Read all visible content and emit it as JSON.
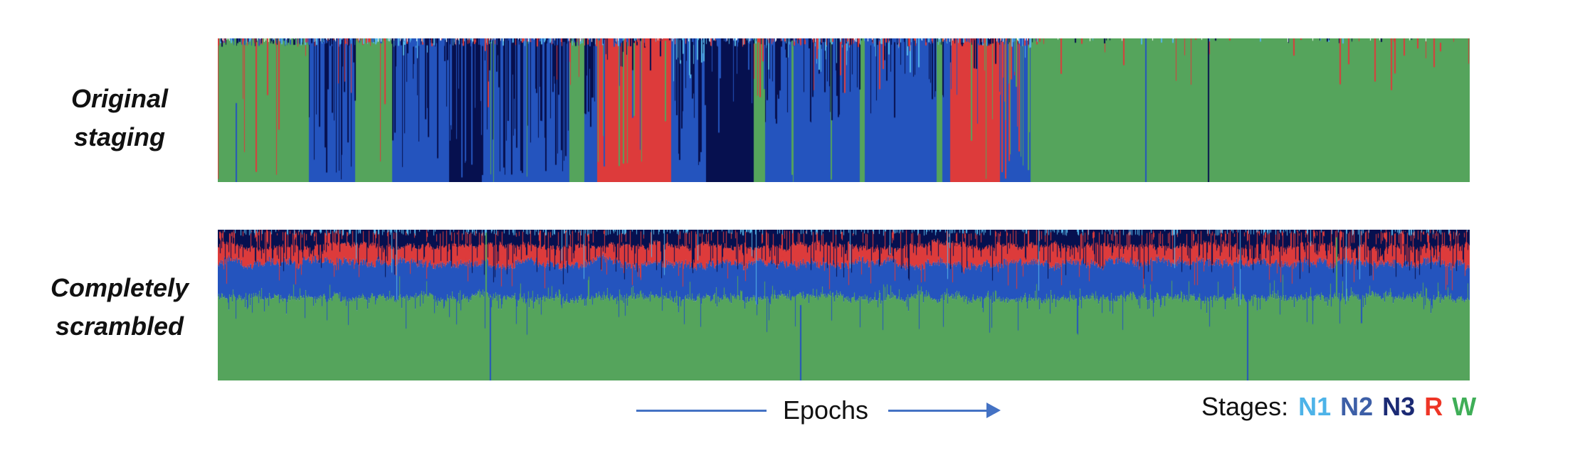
{
  "figure": {
    "rows": [
      {
        "label": "Original\nstaging"
      },
      {
        "label": "Completely\nscrambled"
      }
    ],
    "footer": {
      "epochs_label": "Epochs",
      "arrow_color": "#4472c4"
    },
    "legend": {
      "title": "Stages:",
      "items": [
        {
          "label": "N1",
          "stage": "N1",
          "color": "#4db3e8"
        },
        {
          "label": "N2",
          "stage": "N2",
          "color": "#3d5fa7"
        },
        {
          "label": "N3",
          "stage": "N3",
          "color": "#1b2a74"
        },
        {
          "label": "R",
          "stage": "R",
          "color": "#ee3526"
        },
        {
          "label": "W",
          "stage": "W",
          "color": "#3fae57"
        }
      ]
    }
  },
  "chart_data": {
    "type": "heatmap",
    "subtype": "per-epoch sleep stage bands (hypnogram-style, one colored column per epoch)",
    "bands": [
      "Original staging",
      "Completely scrambled"
    ],
    "xlabel": "Epochs",
    "stages": [
      "N1",
      "N2",
      "N3",
      "R",
      "W"
    ],
    "stage_colors": {
      "N1": "#54b6e9",
      "N2": "#2454be",
      "N3": "#06104f",
      "R": "#dd3b3b",
      "W": "#55a45c"
    },
    "seed": 7,
    "original_staging": {
      "description": "Dominant stage per fractional position along the night; streaks are minority-stage epochs mixed in",
      "segments": [
        {
          "stage": "W",
          "from": 0.0,
          "to": 0.073,
          "streaks": [
            {
              "stage": "R",
              "density": 0.06,
              "min": 0.1,
              "max": 1.0
            }
          ]
        },
        {
          "stage": "N2",
          "from": 0.073,
          "to": 0.11,
          "streaks": [
            {
              "stage": "N3",
              "density": 0.3,
              "min": 0.1,
              "max": 1.0
            },
            {
              "stage": "R",
              "density": 0.05,
              "min": 0.05,
              "max": 0.4
            }
          ]
        },
        {
          "stage": "W",
          "from": 0.11,
          "to": 0.139,
          "streaks": [
            {
              "stage": "R",
              "density": 0.08,
              "min": 0.1,
              "max": 0.9
            }
          ]
        },
        {
          "stage": "N2",
          "from": 0.139,
          "to": 0.185,
          "streaks": [
            {
              "stage": "N3",
              "density": 0.3,
              "min": 0.1,
              "max": 0.9
            },
            {
              "stage": "N1",
              "density": 0.06,
              "min": 0.03,
              "max": 0.2
            }
          ]
        },
        {
          "stage": "N3",
          "from": 0.185,
          "to": 0.211,
          "streaks": [
            {
              "stage": "N2",
              "density": 0.25,
              "min": 0.3,
              "max": 1.0
            }
          ]
        },
        {
          "stage": "N2",
          "from": 0.211,
          "to": 0.281,
          "streaks": [
            {
              "stage": "N3",
              "density": 0.4,
              "min": 0.1,
              "max": 1.0
            },
            {
              "stage": "R",
              "density": 0.05,
              "min": 0.05,
              "max": 0.5
            },
            {
              "stage": "W",
              "density": 0.015,
              "min": 0.9,
              "max": 1.0
            }
          ]
        },
        {
          "stage": "W",
          "from": 0.281,
          "to": 0.293,
          "streaks": [
            {
              "stage": "R",
              "density": 0.08,
              "min": 0.1,
              "max": 0.5
            }
          ]
        },
        {
          "stage": "N2",
          "from": 0.293,
          "to": 0.303,
          "streaks": [
            {
              "stage": "N3",
              "density": 0.25,
              "min": 0.1,
              "max": 0.8
            }
          ]
        },
        {
          "stage": "R",
          "from": 0.303,
          "to": 0.362,
          "streaks": [
            {
              "stage": "W",
              "density": 0.07,
              "min": 0.5,
              "max": 1.0
            },
            {
              "stage": "N2",
              "density": 0.04,
              "min": 0.2,
              "max": 1.0
            },
            {
              "stage": "N3",
              "density": 0.12,
              "min": 0.03,
              "max": 0.25
            }
          ]
        },
        {
          "stage": "N2",
          "from": 0.362,
          "to": 0.39,
          "streaks": [
            {
              "stage": "N3",
              "density": 0.3,
              "min": 0.1,
              "max": 0.9
            },
            {
              "stage": "N1",
              "density": 0.1,
              "min": 0.04,
              "max": 0.3
            }
          ]
        },
        {
          "stage": "N3",
          "from": 0.39,
          "to": 0.428,
          "streaks": [
            {
              "stage": "N2",
              "density": 0.1,
              "min": 0.2,
              "max": 0.7
            }
          ]
        },
        {
          "stage": "W",
          "from": 0.428,
          "to": 0.437,
          "streaks": [
            {
              "stage": "R",
              "density": 0.15,
              "min": 0.1,
              "max": 0.5
            },
            {
              "stage": "N2",
              "density": 0.1,
              "min": 0.2,
              "max": 0.6
            }
          ]
        },
        {
          "stage": "N2",
          "from": 0.437,
          "to": 0.513,
          "streaks": [
            {
              "stage": "N3",
              "density": 0.25,
              "min": 0.05,
              "max": 0.6
            },
            {
              "stage": "N1",
              "density": 0.1,
              "min": 0.03,
              "max": 0.25
            },
            {
              "stage": "R",
              "density": 0.04,
              "min": 0.05,
              "max": 0.4
            },
            {
              "stage": "W",
              "density": 0.01,
              "min": 0.9,
              "max": 1.0
            }
          ]
        },
        {
          "stage": "W",
          "from": 0.513,
          "to": 0.517,
          "streaks": []
        },
        {
          "stage": "N2",
          "from": 0.517,
          "to": 0.574,
          "streaks": [
            {
              "stage": "N3",
              "density": 0.22,
              "min": 0.05,
              "max": 0.6
            },
            {
              "stage": "N1",
              "density": 0.07,
              "min": 0.03,
              "max": 0.25
            },
            {
              "stage": "R",
              "density": 0.05,
              "min": 0.05,
              "max": 0.4
            }
          ]
        },
        {
          "stage": "W",
          "from": 0.574,
          "to": 0.579,
          "streaks": []
        },
        {
          "stage": "N2",
          "from": 0.579,
          "to": 0.585,
          "streaks": [
            {
              "stage": "N3",
              "density": 0.18,
              "min": 0.1,
              "max": 0.6
            }
          ]
        },
        {
          "stage": "R",
          "from": 0.585,
          "to": 0.625,
          "streaks": [
            {
              "stage": "N3",
              "density": 0.1,
              "min": 0.03,
              "max": 0.3
            },
            {
              "stage": "W",
              "density": 0.04,
              "min": 0.2,
              "max": 1.0
            },
            {
              "stage": "N2",
              "density": 0.04,
              "min": 0.1,
              "max": 0.6
            }
          ]
        },
        {
          "stage": "N2",
          "from": 0.625,
          "to": 0.649,
          "streaks": [
            {
              "stage": "R",
              "density": 0.3,
              "min": 0.2,
              "max": 1.0
            },
            {
              "stage": "W",
              "density": 0.18,
              "min": 0.2,
              "max": 1.0
            },
            {
              "stage": "N1",
              "density": 0.1,
              "min": 0.05,
              "max": 0.3
            }
          ]
        },
        {
          "stage": "W",
          "from": 0.649,
          "to": 1.0,
          "streaks": [
            {
              "stage": "R",
              "density": 0.012,
              "min": 0.05,
              "max": 0.35
            },
            {
              "stage": "N1",
              "density": 0.004,
              "min": 0.02,
              "max": 0.08
            }
          ]
        }
      ],
      "top_noise": [
        {
          "from": 0.0,
          "to": 0.66,
          "density": 0.5,
          "max_len": 0.05,
          "white_notch_density": 0.08,
          "stages": [
            "N3",
            "R",
            "N1",
            "N2"
          ]
        },
        {
          "from": 0.66,
          "to": 1.0,
          "density": 0.06,
          "max_len": 0.03,
          "white_notch_density": 0.02,
          "stages": [
            "R",
            "N1",
            "N3"
          ]
        }
      ],
      "spikes": [
        {
          "frac": 0.014,
          "stage": "N2",
          "from": 0.45,
          "to": 1.0
        },
        {
          "frac": 0.741,
          "stage": "N2",
          "from": 0.0,
          "to": 1.0
        },
        {
          "frac": 0.791,
          "stage": "N3",
          "from": 0.0,
          "to": 1.0
        },
        {
          "frac": 0.859,
          "stage": "R",
          "from": 0.0,
          "to": 0.12
        },
        {
          "frac": 0.896,
          "stage": "R",
          "from": 0.0,
          "to": 0.32
        },
        {
          "frac": 0.903,
          "stage": "R",
          "from": 0.0,
          "to": 0.18
        },
        {
          "frac": 0.924,
          "stage": "R",
          "from": 0.0,
          "to": 0.3
        },
        {
          "frac": 0.937,
          "stage": "R",
          "from": 0.0,
          "to": 0.36
        },
        {
          "frac": 0.947,
          "stage": "R",
          "from": 0.0,
          "to": 0.12
        },
        {
          "frac": 0.958,
          "stage": "R",
          "from": 0.0,
          "to": 0.07
        },
        {
          "frac": 0.971,
          "stage": "R",
          "from": 0.0,
          "to": 0.2
        },
        {
          "frac": 0.976,
          "stage": "R",
          "from": 0.03,
          "to": 0.09
        }
      ]
    },
    "completely_scrambled": {
      "description": "Stages uniformly shuffled in time; stacked jagged layers from top: N3 ~10%, R ~12%, N2 ~22%, W ~55%, sparse N1 ticks at top",
      "layers": [
        {
          "stage": "N3",
          "mean_bottom": 0.105
        },
        {
          "stage": "R",
          "mean_bottom": 0.225
        },
        {
          "stage": "N2",
          "mean_bottom": 0.45
        },
        {
          "stage": "W",
          "mean_bottom": 1.0
        }
      ],
      "n1_ticks": {
        "density": 0.2,
        "min": 0.01,
        "max": 0.04,
        "long_density": 0.012,
        "long_max": 0.5
      },
      "mix_zones": [
        {
          "from": 0.0,
          "to": 0.1,
          "intensity": 0.8
        },
        {
          "from": 0.1,
          "to": 0.8,
          "intensity": 0.4
        },
        {
          "from": 0.8,
          "to": 1.01,
          "intensity": 0.85
        }
      ],
      "spikes": [
        {
          "frac": 0.214,
          "stage": "W",
          "from": 0.02,
          "to": 0.45
        },
        {
          "frac": 0.217,
          "stage": "N2",
          "from": 0.45,
          "to": 1.0
        },
        {
          "frac": 0.465,
          "stage": "N2",
          "from": 0.5,
          "to": 1.0
        },
        {
          "frac": 0.822,
          "stage": "N2",
          "from": 0.45,
          "to": 1.0
        },
        {
          "frac": 0.893,
          "stage": "W",
          "from": 0.05,
          "to": 0.45
        },
        {
          "frac": 0.913,
          "stage": "N2",
          "from": 0.35,
          "to": 0.62
        }
      ]
    }
  }
}
